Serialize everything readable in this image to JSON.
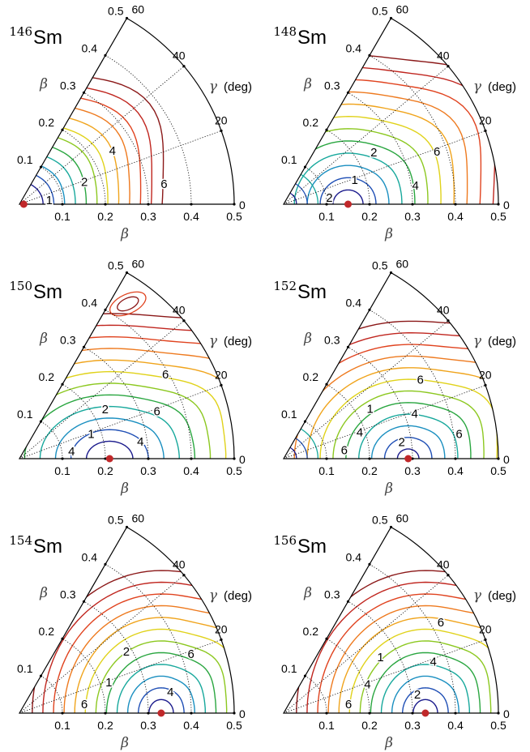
{
  "chart_data": [
    {
      "type": "contour",
      "nucleus": {
        "mass": "146",
        "symbol": "Sm"
      },
      "beta_ticks": [
        "0.1",
        "0.2",
        "0.3",
        "0.4",
        "0.5"
      ],
      "gamma_ticks": [
        "0",
        "20",
        "40",
        "60"
      ],
      "beta_label": "β",
      "gamma_label": "γ",
      "gamma_unit": "(deg)",
      "contour_labels": [
        "1",
        "2",
        "4",
        "6"
      ],
      "minimum": {
        "beta": 0.01,
        "gamma": 0
      }
    },
    {
      "type": "contour",
      "nucleus": {
        "mass": "148",
        "symbol": "Sm"
      },
      "beta_ticks": [
        "0.1",
        "0.2",
        "0.3",
        "0.4",
        "0.5"
      ],
      "gamma_ticks": [
        "0",
        "20",
        "40",
        "60"
      ],
      "beta_label": "β",
      "gamma_label": "γ",
      "gamma_unit": "(deg)",
      "contour_labels": [
        "2",
        "1",
        "2",
        "4",
        "6"
      ],
      "minimum": {
        "beta": 0.15,
        "gamma": 0
      }
    },
    {
      "type": "contour",
      "nucleus": {
        "mass": "150",
        "symbol": "Sm"
      },
      "beta_ticks": [
        "0.1",
        "0.2",
        "0.3",
        "0.4",
        "0.5"
      ],
      "gamma_ticks": [
        "0",
        "20",
        "40",
        "60"
      ],
      "beta_label": "β",
      "gamma_label": "γ",
      "gamma_unit": "(deg)",
      "contour_labels": [
        "4",
        "1",
        "2",
        "4",
        "6",
        "6"
      ],
      "minimum": {
        "beta": 0.21,
        "gamma": 0
      }
    },
    {
      "type": "contour",
      "nucleus": {
        "mass": "152",
        "symbol": "Sm"
      },
      "beta_ticks": [
        "0.1",
        "0.2",
        "0.3",
        "0.4",
        "0.5"
      ],
      "gamma_ticks": [
        "0",
        "20",
        "40",
        "60"
      ],
      "beta_label": "β",
      "gamma_label": "γ",
      "gamma_unit": "(deg)",
      "contour_labels": [
        "6",
        "4",
        "1",
        "2",
        "4",
        "6",
        "6"
      ],
      "minimum": {
        "beta": 0.29,
        "gamma": 0
      }
    },
    {
      "type": "contour",
      "nucleus": {
        "mass": "154",
        "symbol": "Sm"
      },
      "beta_ticks": [
        "0.1",
        "0.2",
        "0.3",
        "0.4",
        "0.5"
      ],
      "gamma_ticks": [
        "0",
        "20",
        "40",
        "60"
      ],
      "beta_label": "β",
      "gamma_label": "γ",
      "gamma_unit": "(deg)",
      "contour_labels": [
        "6",
        "1",
        "2",
        "4",
        "6"
      ],
      "minimum": {
        "beta": 0.33,
        "gamma": 0
      }
    },
    {
      "type": "contour",
      "nucleus": {
        "mass": "156",
        "symbol": "Sm"
      },
      "beta_ticks": [
        "0.1",
        "0.2",
        "0.3",
        "0.4",
        "0.5"
      ],
      "gamma_ticks": [
        "0",
        "20",
        "40",
        "60"
      ],
      "beta_label": "β",
      "gamma_label": "γ",
      "gamma_unit": "(deg)",
      "contour_labels": [
        "6",
        "4",
        "1",
        "2",
        "4",
        "6"
      ],
      "minimum": {
        "beta": 0.33,
        "gamma": 0
      }
    }
  ],
  "colors": {
    "contour_levels": [
      "#1a1a8c",
      "#1f4fb5",
      "#1a8fc0",
      "#17a89c",
      "#2aa640",
      "#8cc820",
      "#e0d21a",
      "#f0a41c",
      "#ee7a1f",
      "#e0431f",
      "#c0261f",
      "#8b1818"
    ],
    "frame": "#000000",
    "grid": "#000000",
    "minimum_marker": "#c0282a"
  }
}
